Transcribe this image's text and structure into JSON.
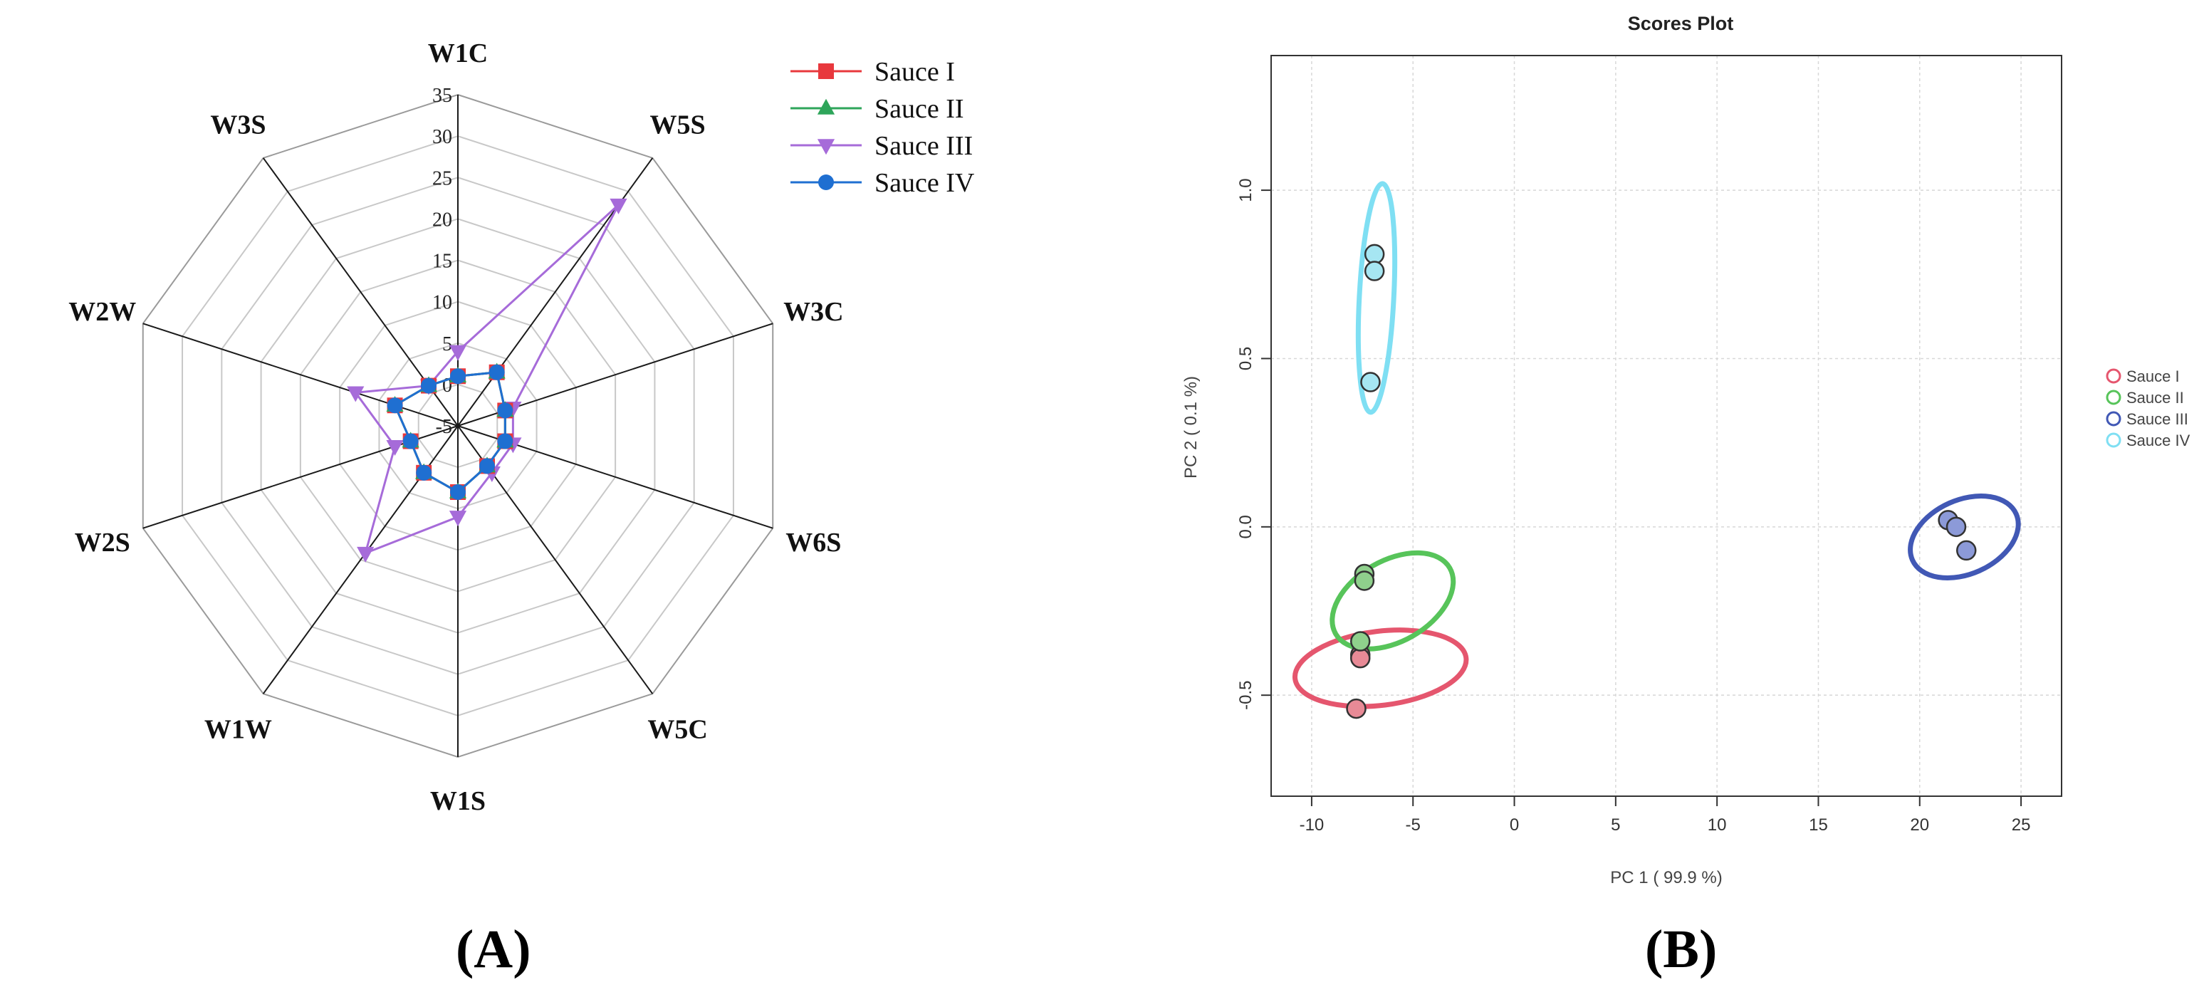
{
  "chart_data": [
    {
      "type": "radar",
      "panel_label": "(A)",
      "axes": [
        "W1C",
        "W5S",
        "W3C",
        "W6S",
        "W5C",
        "W1S",
        "W1W",
        "W2S",
        "W2W",
        "W3S"
      ],
      "r_ticks": [
        "-5",
        "0",
        "5",
        "10",
        "15",
        "20",
        "25",
        "30",
        "35"
      ],
      "r_range": [
        -5,
        35
      ],
      "legend": [
        "Sauce I",
        "Sauce II",
        "Sauce III",
        "Sauce IV"
      ],
      "series": [
        {
          "name": "Sauce I",
          "color": "#e8383d",
          "marker": "square",
          "values": [
            1,
            3,
            1,
            1,
            1,
            3,
            2,
            1,
            3,
            1
          ]
        },
        {
          "name": "Sauce II",
          "color": "#2ea55a",
          "marker": "triangle",
          "values": [
            1,
            3,
            1,
            1,
            1,
            3,
            2,
            1,
            3,
            1
          ]
        },
        {
          "name": "Sauce III",
          "color": "#a66bd9",
          "marker": "triangle-down",
          "values": [
            4,
            28,
            2,
            2,
            2,
            6,
            14,
            3,
            8,
            1
          ]
        },
        {
          "name": "Sauce IV",
          "color": "#1f6fd1",
          "marker": "circle",
          "values": [
            1,
            3,
            1,
            1,
            1,
            3,
            2,
            1,
            3,
            1
          ]
        }
      ]
    },
    {
      "type": "scatter",
      "panel_label": "(B)",
      "title": "Scores Plot",
      "xlabel": "PC 1 ( 99.9 %)",
      "ylabel": "PC 2 ( 0.1 %)",
      "xlim": [
        -12,
        27
      ],
      "ylim": [
        -0.8,
        1.4
      ],
      "xticks": [
        -10,
        -5,
        0,
        5,
        10,
        15,
        20,
        25
      ],
      "yticks": [
        -0.5,
        0.0,
        0.5,
        1.0
      ],
      "xtick_labels": [
        "-10",
        "-5",
        "0",
        "5",
        "10",
        "15",
        "20",
        "25"
      ],
      "ytick_labels": [
        "-0.5",
        "0.0",
        "0.5",
        "1.0"
      ],
      "legend": [
        "Sauce I",
        "Sauce II",
        "Sauce III",
        "Sauce IV"
      ],
      "series": [
        {
          "name": "Sauce I",
          "color": "#e5566e",
          "fill": "#e88a96",
          "points": [
            [
              -7.6,
              -0.38
            ],
            [
              -7.6,
              -0.39
            ],
            [
              -7.8,
              -0.54
            ]
          ],
          "ellipse": {
            "cx": -6.6,
            "cy": -0.42,
            "rx": 8.5,
            "ry": 0.11,
            "angle_deg": -7
          }
        },
        {
          "name": "Sauce II",
          "color": "#57c45a",
          "fill": "#8fd08c",
          "points": [
            [
              -7.4,
              -0.14
            ],
            [
              -7.4,
              -0.16
            ],
            [
              -7.6,
              -0.34
            ]
          ],
          "ellipse": {
            "cx": -6.0,
            "cy": -0.22,
            "rx": 6.5,
            "ry": 0.12,
            "angle_deg": -30
          }
        },
        {
          "name": "Sauce III",
          "color": "#4158b5",
          "fill": "#8c9ad8",
          "points": [
            [
              21.4,
              0.02
            ],
            [
              21.8,
              0.0
            ],
            [
              22.3,
              -0.07
            ]
          ],
          "ellipse": {
            "cx": 22.2,
            "cy": -0.03,
            "rx": 5.6,
            "ry": 0.11,
            "angle_deg": -24
          }
        },
        {
          "name": "Sauce IV",
          "color": "#7fdff3",
          "fill": "#a6e6f2",
          "points": [
            [
              -6.9,
              0.81
            ],
            [
              -6.9,
              0.76
            ],
            [
              -7.1,
              0.43
            ]
          ],
          "ellipse": {
            "cx": -6.8,
            "cy": 0.68,
            "rx": 1.7,
            "ry": 0.34,
            "angle_deg": 3
          }
        }
      ]
    }
  ]
}
